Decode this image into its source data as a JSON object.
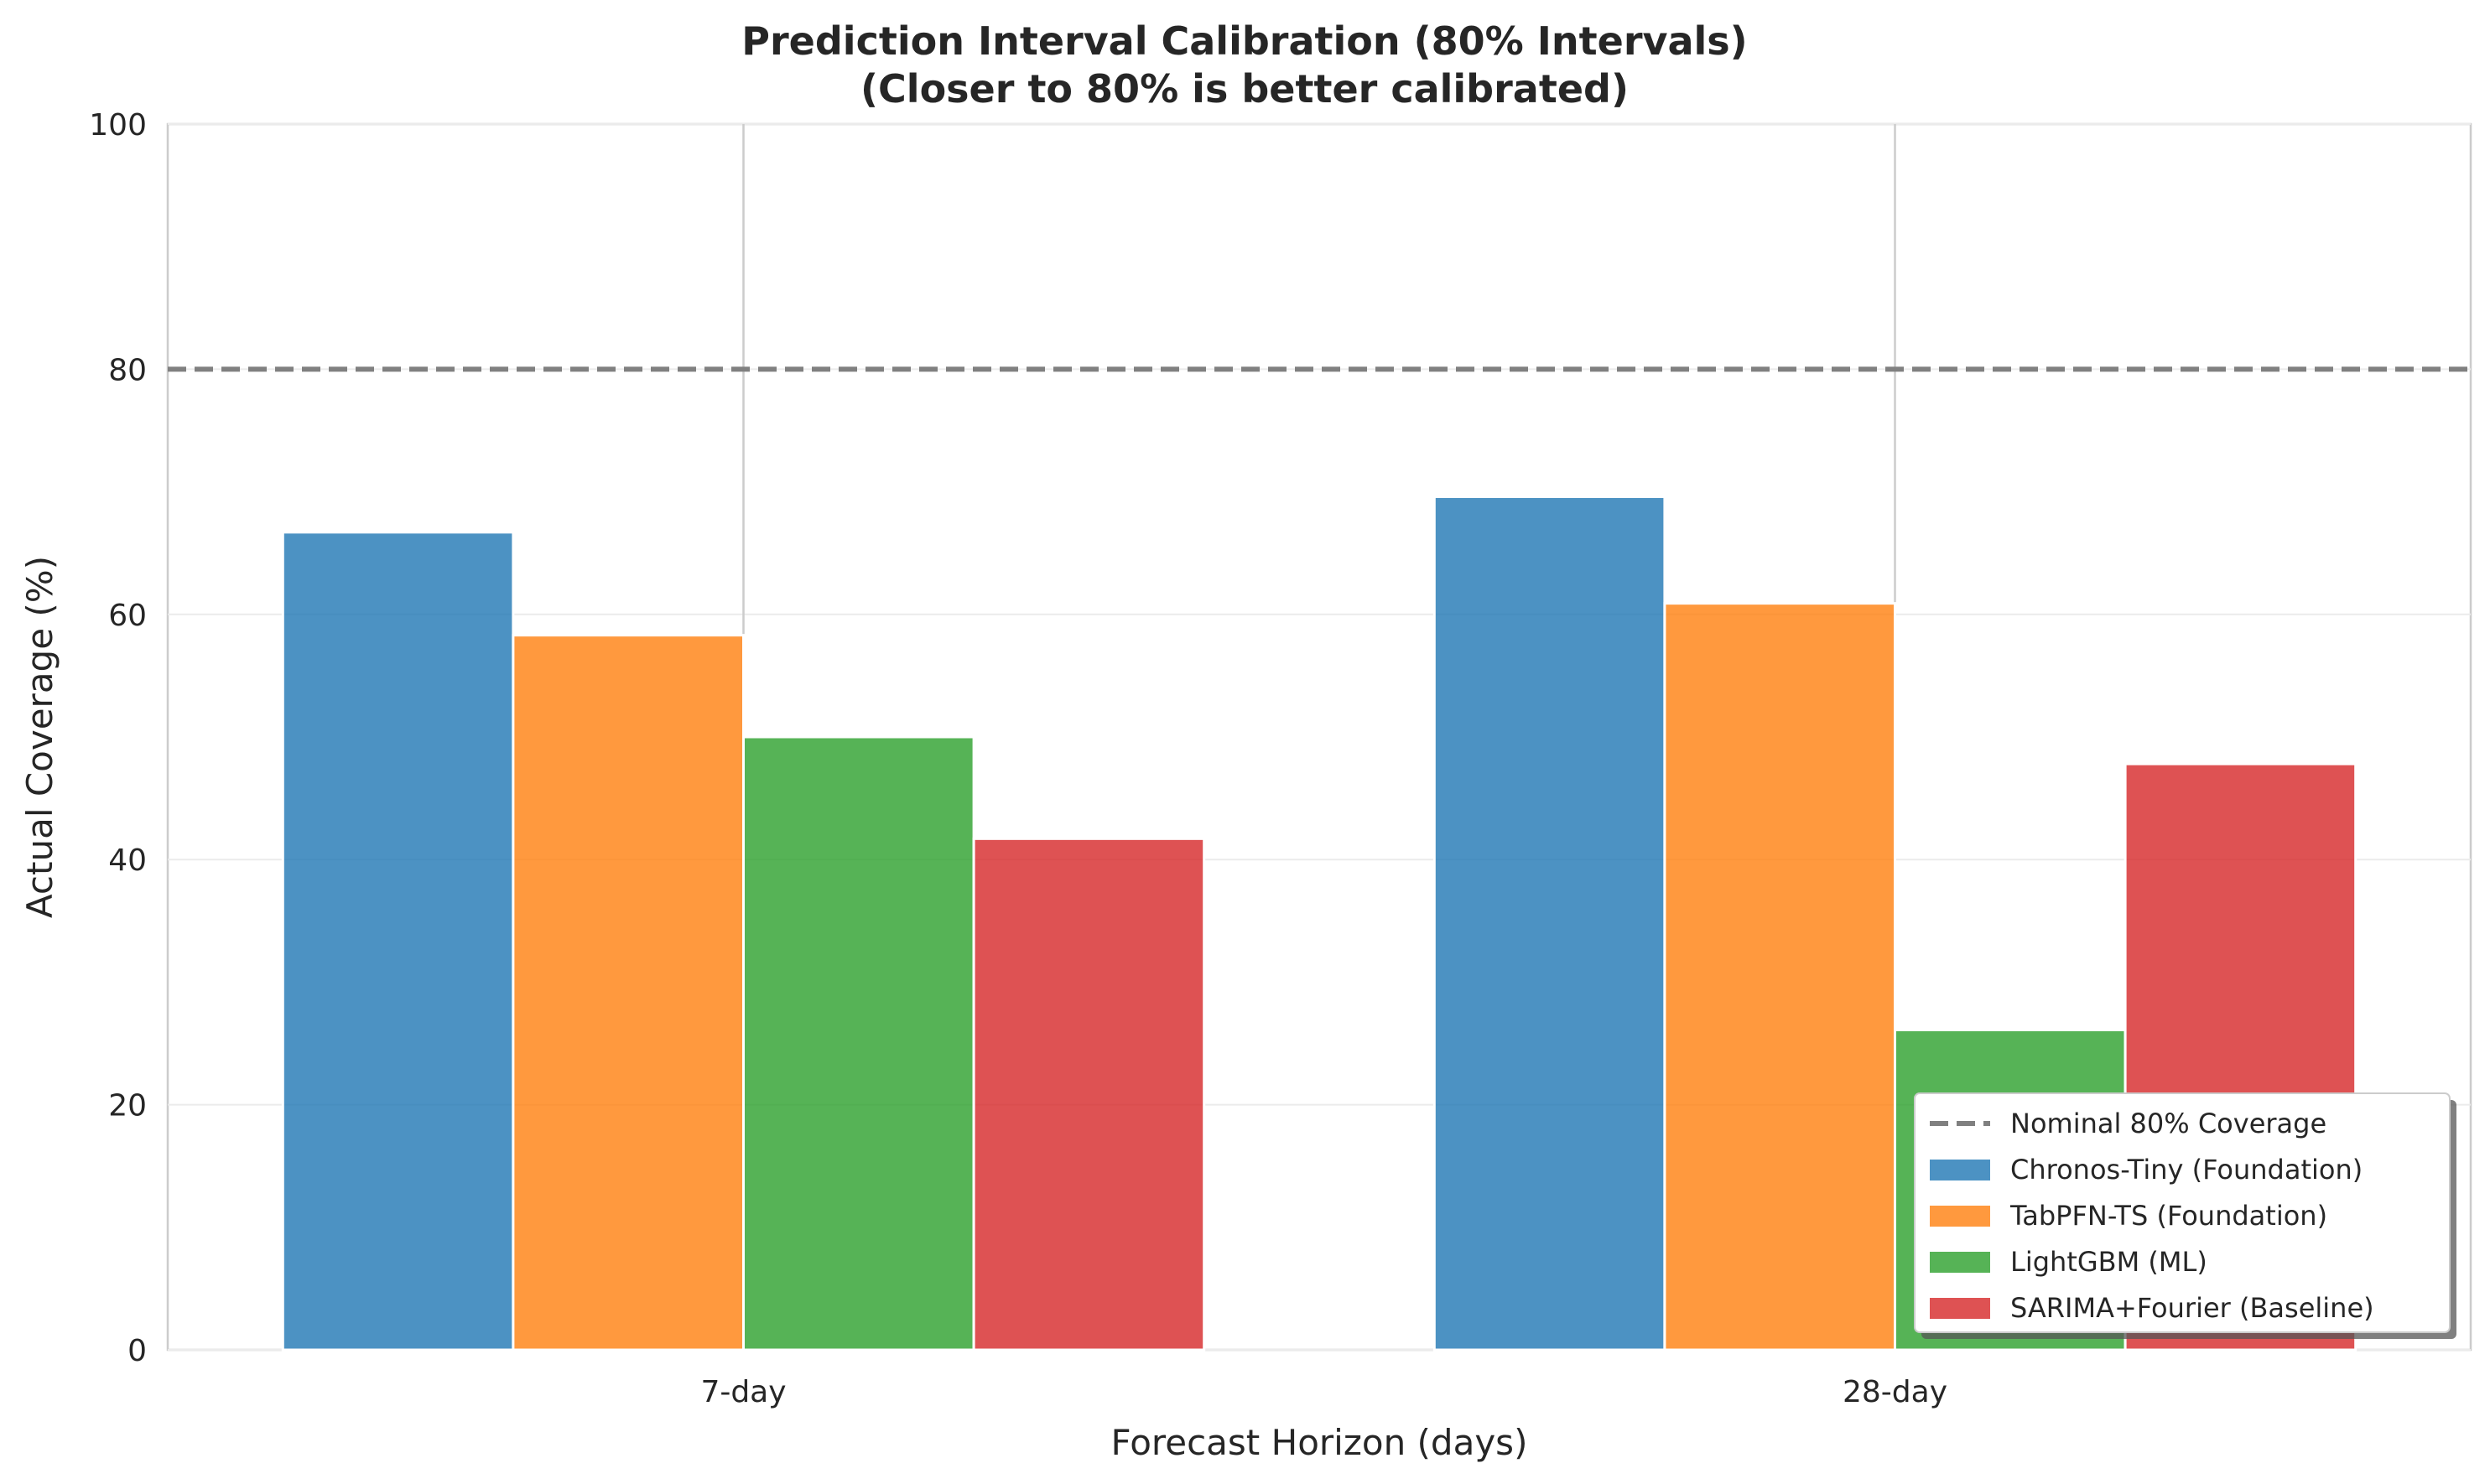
{
  "chart_data": {
    "type": "bar",
    "title": "Prediction Interval Calibration (80% Intervals)",
    "subtitle": "(Closer to 80% is better calibrated)",
    "xlabel": "Forecast Horizon (days)",
    "ylabel": "Actual Coverage (%)",
    "categories": [
      "7-day",
      "28-day"
    ],
    "ylim": [
      0,
      100
    ],
    "yticks": [
      0,
      20,
      40,
      60,
      80,
      100
    ],
    "grid": true,
    "legend_position": "bottom-right",
    "reference_line": {
      "name": "Nominal 80% Coverage",
      "value": 80,
      "color": "#808080",
      "style": "dashed"
    },
    "series": [
      {
        "name": "Chronos-Tiny (Foundation)",
        "color": "#1f77b4",
        "values": [
          66.7,
          69.6
        ]
      },
      {
        "name": "TabPFN-TS (Foundation)",
        "color": "#ff7f0e",
        "values": [
          58.3,
          60.9
        ]
      },
      {
        "name": "LightGBM (ML)",
        "color": "#2ca02c",
        "values": [
          50.0,
          26.1
        ]
      },
      {
        "name": "SARIMA+Fourier (Baseline)",
        "color": "#d62728",
        "values": [
          41.7,
          47.8
        ]
      }
    ]
  }
}
